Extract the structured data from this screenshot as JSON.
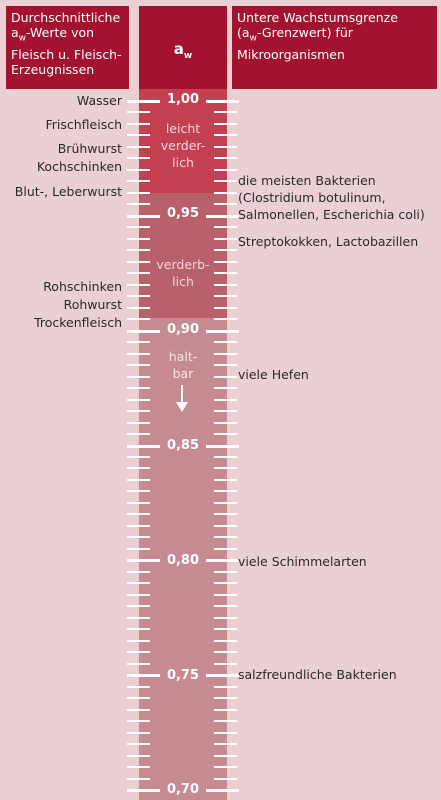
{
  "header": {
    "left": [
      "Durchschnittliche",
      "a",
      "w",
      "-Werte von",
      "Fleisch u. Fleisch-",
      "Erzeugnissen"
    ],
    "center_symbol": "a",
    "center_sub": "w",
    "right": [
      "Untere Wachstumsgrenze",
      "(a",
      "w",
      "-Grenzwert) für",
      "Mikroorganismen"
    ]
  },
  "scale": {
    "labels": [
      "1,00",
      "0,95",
      "0,90",
      "0,85",
      "0,80",
      "0,75",
      "0,70"
    ],
    "values": [
      1.0,
      0.95,
      0.9,
      0.85,
      0.8,
      0.75,
      0.7
    ]
  },
  "zones": {
    "leicht_verderblich": [
      "leicht",
      "verder-",
      "lich"
    ],
    "verderblich": [
      "verderb-",
      "lich"
    ],
    "haltbar": [
      "halt-",
      "bar"
    ]
  },
  "left_labels": [
    "Wasser",
    "Frischfleisch",
    "Brühwurst",
    "Kochschinken",
    "Blut-, Leberwurst",
    "Rohschinken",
    "Rohwurst",
    "Trockenfleisch"
  ],
  "right_labels": [
    "die meisten Bakterien",
    "(Clostridium botulinum,",
    "Salmonellen, Escherichia coli)",
    "Streptokokken, Lactobazillen",
    "viele Hefen",
    "viele Schimmelarten",
    "salzfreundliche Bakterien"
  ],
  "colors": {
    "background": "#ead0d3",
    "header": "#a3132f",
    "zone_leicht_verderblich": "#c2404f",
    "zone_verderblich": "#b8616a",
    "zone_haltbar": "#c58b90"
  }
}
